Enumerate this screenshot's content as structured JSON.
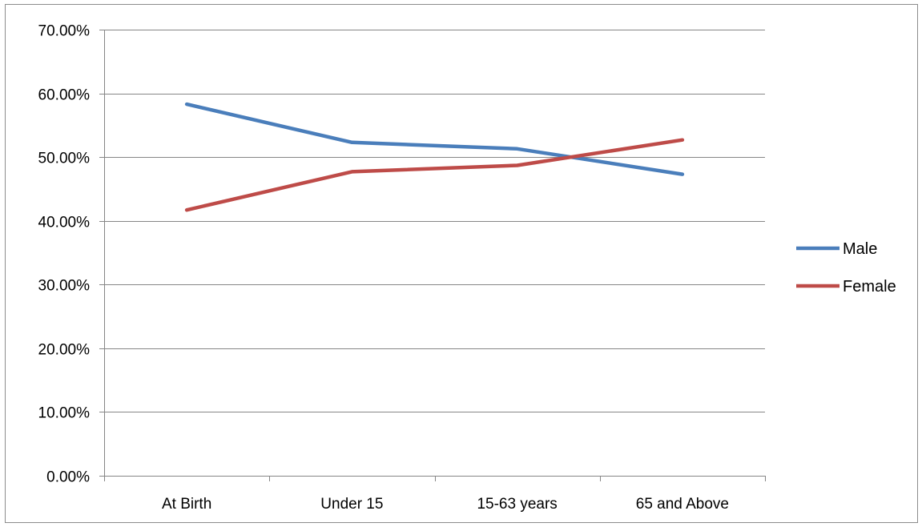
{
  "chart_data": {
    "type": "line",
    "categories": [
      "At Birth",
      "Under 15",
      "15-63 years",
      "65 and Above"
    ],
    "series": [
      {
        "name": "Male",
        "values": [
          0.583,
          0.523,
          0.513,
          0.473
        ],
        "color": "#4a7ebb"
      },
      {
        "name": "Female",
        "values": [
          0.417,
          0.477,
          0.487,
          0.527
        ],
        "color": "#be4b48"
      }
    ],
    "ylim": [
      0,
      0.7
    ],
    "yticks": [
      "0.00%",
      "10.00%",
      "20.00%",
      "30.00%",
      "40.00%",
      "50.00%",
      "60.00%",
      "70.00%"
    ],
    "grid": true,
    "legend_position": "right",
    "title": "",
    "xlabel": "",
    "ylabel": ""
  }
}
